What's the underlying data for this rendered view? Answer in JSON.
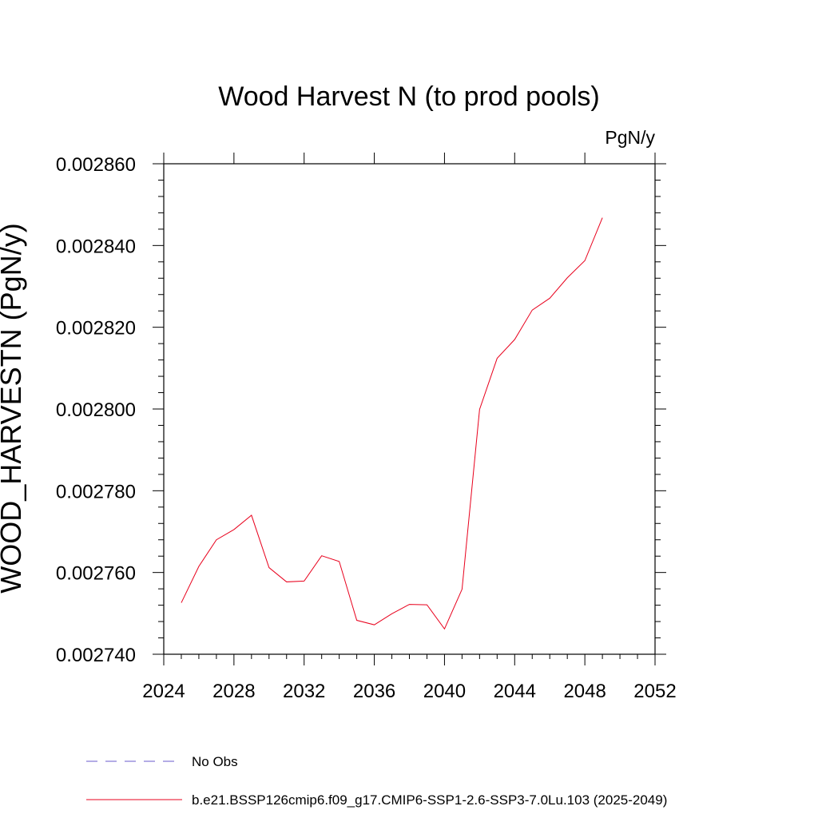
{
  "chart_data": {
    "type": "line",
    "title": "Wood Harvest N (to prod pools)",
    "units": "PgN/y",
    "ylabel": "WOOD_HARVESTN  (PgN/y)",
    "xlabel": "",
    "xlim": [
      2024,
      2052
    ],
    "ylim": [
      0.00274,
      0.00286
    ],
    "x_ticks": [
      "2024",
      "2028",
      "2032",
      "2036",
      "2040",
      "2044",
      "2048",
      "2052"
    ],
    "y_ticks": [
      "0.002740",
      "0.002760",
      "0.002780",
      "0.002800",
      "0.002820",
      "0.002840",
      "0.002860"
    ],
    "grid": false,
    "legend_position": "bottom-left",
    "legend": [
      {
        "label": "No Obs",
        "style": "dashed",
        "color": "#6a5acd"
      },
      {
        "label": "b.e21.BSSP126cmip6.f09_g17.CMIP6-SSP1-2.6-SSP3-7.0Lu.103 (2025-2049)",
        "style": "solid",
        "color": "#e8001c"
      }
    ],
    "series": [
      {
        "name": "b.e21.BSSP126cmip6.f09_g17.CMIP6-SSP1-2.6-SSP3-7.0Lu.103 (2025-2049)",
        "color": "#e8001c",
        "x": [
          2025,
          2026,
          2027,
          2028,
          2029,
          2030,
          2031,
          2032,
          2033,
          2034,
          2035,
          2036,
          2037,
          2038,
          2039,
          2040,
          2041,
          2042,
          2043,
          2044,
          2045,
          2046,
          2047,
          2048,
          2049
        ],
        "y": [
          0.0027526,
          0.0027615,
          0.002768,
          0.0027705,
          0.002774,
          0.0027612,
          0.0027577,
          0.0027579,
          0.0027641,
          0.0027627,
          0.0027483,
          0.0027472,
          0.0027499,
          0.0027522,
          0.0027521,
          0.0027462,
          0.0027559,
          0.0027999,
          0.0028124,
          0.002817,
          0.0028242,
          0.0028271,
          0.0028321,
          0.0028363,
          0.0028468
        ]
      }
    ]
  }
}
